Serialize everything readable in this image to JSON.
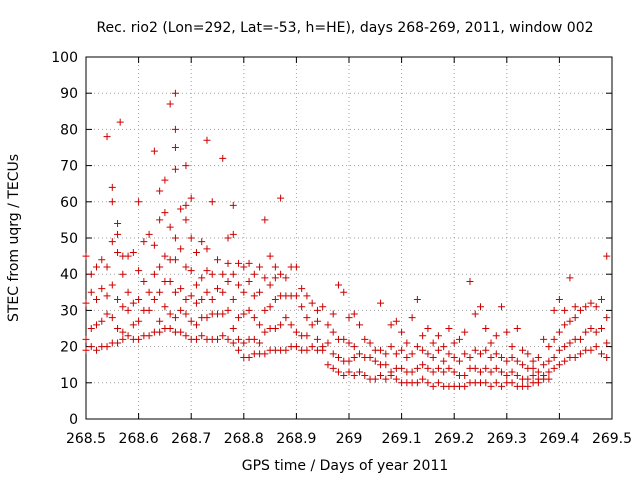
{
  "chart_data": {
    "type": "scatter",
    "title": "Rec. rio2 (Lon=292, Lat=-53, h=HE), days 268-269, 2011, window 002",
    "xlabel": "GPS time / Days of year 2011",
    "ylabel": "STEC from uqrg / TECUs",
    "xlim": [
      268.5,
      269.5
    ],
    "ylim": [
      0,
      100
    ],
    "xticks": [
      "268.5",
      "268.6",
      "268.7",
      "268.8",
      "268.9",
      "269",
      "269.1",
      "269.2",
      "269.3",
      "269.4",
      "269.5"
    ],
    "yticks": [
      "0",
      "10",
      "20",
      "30",
      "40",
      "50",
      "60",
      "70",
      "80",
      "90",
      "100"
    ],
    "grid": true,
    "marker": "+",
    "color": "#cc0000",
    "points": [
      [
        268.5,
        19
      ],
      [
        268.5,
        22
      ],
      [
        268.5,
        32
      ],
      [
        268.5,
        45
      ],
      [
        268.51,
        20
      ],
      [
        268.51,
        25
      ],
      [
        268.51,
        35
      ],
      [
        268.51,
        40
      ],
      [
        268.52,
        19
      ],
      [
        268.52,
        26
      ],
      [
        268.52,
        33
      ],
      [
        268.52,
        42
      ],
      [
        268.53,
        20
      ],
      [
        268.53,
        27
      ],
      [
        268.53,
        36
      ],
      [
        268.53,
        44
      ],
      [
        268.54,
        20
      ],
      [
        268.54,
        29
      ],
      [
        268.54,
        34
      ],
      [
        268.54,
        42
      ],
      [
        268.54,
        78
      ],
      [
        268.55,
        21
      ],
      [
        268.55,
        28
      ],
      [
        268.55,
        37
      ],
      [
        268.55,
        49
      ],
      [
        268.55,
        60
      ],
      [
        268.55,
        64
      ],
      [
        268.56,
        21
      ],
      [
        268.56,
        25
      ],
      [
        268.56,
        33
      ],
      [
        268.56,
        46
      ],
      [
        268.56,
        51
      ],
      [
        268.56,
        54
      ],
      [
        268.565,
        82
      ],
      [
        268.57,
        22
      ],
      [
        268.57,
        24
      ],
      [
        268.57,
        31
      ],
      [
        268.57,
        40
      ],
      [
        268.57,
        45
      ],
      [
        268.58,
        23
      ],
      [
        268.58,
        30
      ],
      [
        268.58,
        35
      ],
      [
        268.58,
        45
      ],
      [
        268.59,
        22
      ],
      [
        268.59,
        26
      ],
      [
        268.59,
        32
      ],
      [
        268.59,
        46
      ],
      [
        268.6,
        22
      ],
      [
        268.6,
        27
      ],
      [
        268.6,
        33
      ],
      [
        268.6,
        41
      ],
      [
        268.6,
        60
      ],
      [
        268.61,
        23
      ],
      [
        268.61,
        30
      ],
      [
        268.61,
        38
      ],
      [
        268.61,
        49
      ],
      [
        268.62,
        23
      ],
      [
        268.62,
        30
      ],
      [
        268.62,
        35
      ],
      [
        268.62,
        51
      ],
      [
        268.63,
        24
      ],
      [
        268.63,
        33
      ],
      [
        268.63,
        40
      ],
      [
        268.63,
        48
      ],
      [
        268.63,
        74
      ],
      [
        268.64,
        24
      ],
      [
        268.64,
        27
      ],
      [
        268.64,
        35
      ],
      [
        268.64,
        42
      ],
      [
        268.64,
        55
      ],
      [
        268.64,
        63
      ],
      [
        268.65,
        25
      ],
      [
        268.65,
        31
      ],
      [
        268.65,
        38
      ],
      [
        268.65,
        45
      ],
      [
        268.65,
        57
      ],
      [
        268.65,
        66
      ],
      [
        268.66,
        25
      ],
      [
        268.66,
        29
      ],
      [
        268.66,
        38
      ],
      [
        268.66,
        44
      ],
      [
        268.66,
        53
      ],
      [
        268.66,
        87
      ],
      [
        268.67,
        24
      ],
      [
        268.67,
        28
      ],
      [
        268.67,
        35
      ],
      [
        268.67,
        44
      ],
      [
        268.67,
        50
      ],
      [
        268.67,
        69
      ],
      [
        268.67,
        75
      ],
      [
        268.67,
        80
      ],
      [
        268.67,
        90
      ],
      [
        268.68,
        24
      ],
      [
        268.68,
        30
      ],
      [
        268.68,
        36
      ],
      [
        268.68,
        47
      ],
      [
        268.68,
        58
      ],
      [
        268.69,
        23
      ],
      [
        268.69,
        29
      ],
      [
        268.69,
        33
      ],
      [
        268.69,
        42
      ],
      [
        268.69,
        55
      ],
      [
        268.69,
        59
      ],
      [
        268.69,
        70
      ],
      [
        268.7,
        22
      ],
      [
        268.7,
        27
      ],
      [
        268.7,
        34
      ],
      [
        268.7,
        41
      ],
      [
        268.7,
        50
      ],
      [
        268.7,
        61
      ],
      [
        268.71,
        22
      ],
      [
        268.71,
        26
      ],
      [
        268.71,
        32
      ],
      [
        268.71,
        37
      ],
      [
        268.71,
        46
      ],
      [
        268.72,
        23
      ],
      [
        268.72,
        28
      ],
      [
        268.72,
        33
      ],
      [
        268.72,
        39
      ],
      [
        268.72,
        49
      ],
      [
        268.73,
        22
      ],
      [
        268.73,
        28
      ],
      [
        268.73,
        35
      ],
      [
        268.73,
        41
      ],
      [
        268.73,
        47
      ],
      [
        268.73,
        77
      ],
      [
        268.74,
        22
      ],
      [
        268.74,
        29
      ],
      [
        268.74,
        33
      ],
      [
        268.74,
        40
      ],
      [
        268.74,
        60
      ],
      [
        268.75,
        22
      ],
      [
        268.75,
        29
      ],
      [
        268.75,
        36
      ],
      [
        268.75,
        44
      ],
      [
        268.76,
        23
      ],
      [
        268.76,
        29
      ],
      [
        268.76,
        35
      ],
      [
        268.76,
        40
      ],
      [
        268.76,
        72
      ],
      [
        268.77,
        22
      ],
      [
        268.77,
        30
      ],
      [
        268.77,
        38
      ],
      [
        268.77,
        43
      ],
      [
        268.77,
        50
      ],
      [
        268.78,
        21
      ],
      [
        268.78,
        25
      ],
      [
        268.78,
        33
      ],
      [
        268.78,
        40
      ],
      [
        268.78,
        51
      ],
      [
        268.78,
        59
      ],
      [
        268.79,
        19
      ],
      [
        268.79,
        22
      ],
      [
        268.79,
        28
      ],
      [
        268.79,
        37
      ],
      [
        268.79,
        43
      ],
      [
        268.8,
        17
      ],
      [
        268.8,
        21
      ],
      [
        268.8,
        29
      ],
      [
        268.8,
        35
      ],
      [
        268.8,
        42
      ],
      [
        268.81,
        17
      ],
      [
        268.81,
        22
      ],
      [
        268.81,
        30
      ],
      [
        268.81,
        38
      ],
      [
        268.81,
        43
      ],
      [
        268.82,
        18
      ],
      [
        268.82,
        22
      ],
      [
        268.82,
        28
      ],
      [
        268.82,
        34
      ],
      [
        268.82,
        40
      ],
      [
        268.83,
        18
      ],
      [
        268.83,
        21
      ],
      [
        268.83,
        26
      ],
      [
        268.83,
        35
      ],
      [
        268.83,
        42
      ],
      [
        268.84,
        18
      ],
      [
        268.84,
        24
      ],
      [
        268.84,
        30
      ],
      [
        268.84,
        39
      ],
      [
        268.84,
        55
      ],
      [
        268.85,
        19
      ],
      [
        268.85,
        25
      ],
      [
        268.85,
        31
      ],
      [
        268.85,
        37
      ],
      [
        268.85,
        45
      ],
      [
        268.86,
        19
      ],
      [
        268.86,
        25
      ],
      [
        268.86,
        33
      ],
      [
        268.86,
        39
      ],
      [
        268.86,
        42
      ],
      [
        268.87,
        19
      ],
      [
        268.87,
        26
      ],
      [
        268.87,
        34
      ],
      [
        268.87,
        40
      ],
      [
        268.87,
        61
      ],
      [
        268.88,
        19
      ],
      [
        268.88,
        28
      ],
      [
        268.88,
        34
      ],
      [
        268.88,
        39
      ],
      [
        268.89,
        20
      ],
      [
        268.89,
        26
      ],
      [
        268.89,
        34
      ],
      [
        268.89,
        42
      ],
      [
        268.9,
        20
      ],
      [
        268.9,
        24
      ],
      [
        268.9,
        34
      ],
      [
        268.9,
        42
      ],
      [
        268.91,
        19
      ],
      [
        268.91,
        23
      ],
      [
        268.91,
        31
      ],
      [
        268.91,
        36
      ],
      [
        268.92,
        19
      ],
      [
        268.92,
        23
      ],
      [
        268.92,
        28
      ],
      [
        268.92,
        34
      ],
      [
        268.93,
        20
      ],
      [
        268.93,
        26
      ],
      [
        268.93,
        32
      ],
      [
        268.94,
        19
      ],
      [
        268.94,
        22
      ],
      [
        268.94,
        27
      ],
      [
        268.94,
        30
      ],
      [
        268.95,
        19
      ],
      [
        268.95,
        20
      ],
      [
        268.95,
        31
      ],
      [
        268.96,
        15
      ],
      [
        268.96,
        21
      ],
      [
        268.96,
        26
      ],
      [
        268.97,
        14
      ],
      [
        268.97,
        18
      ],
      [
        268.97,
        24
      ],
      [
        268.97,
        29
      ],
      [
        268.98,
        13
      ],
      [
        268.98,
        17
      ],
      [
        268.98,
        22
      ],
      [
        268.98,
        37
      ],
      [
        268.99,
        12
      ],
      [
        268.99,
        16
      ],
      [
        268.99,
        22
      ],
      [
        268.99,
        35
      ],
      [
        269.0,
        13
      ],
      [
        269.0,
        16
      ],
      [
        269.0,
        21
      ],
      [
        269.0,
        28
      ],
      [
        269.01,
        12
      ],
      [
        269.01,
        17
      ],
      [
        269.01,
        20
      ],
      [
        269.01,
        29
      ],
      [
        269.02,
        13
      ],
      [
        269.02,
        18
      ],
      [
        269.02,
        26
      ],
      [
        269.03,
        12
      ],
      [
        269.03,
        17
      ],
      [
        269.03,
        22
      ],
      [
        269.04,
        11
      ],
      [
        269.04,
        17
      ],
      [
        269.04,
        21
      ],
      [
        269.05,
        11
      ],
      [
        269.05,
        16
      ],
      [
        269.05,
        19
      ],
      [
        269.06,
        12
      ],
      [
        269.06,
        15
      ],
      [
        269.06,
        19
      ],
      [
        269.06,
        32
      ],
      [
        269.07,
        11
      ],
      [
        269.07,
        15
      ],
      [
        269.07,
        18
      ],
      [
        269.08,
        12
      ],
      [
        269.08,
        13
      ],
      [
        269.08,
        20
      ],
      [
        269.08,
        26
      ],
      [
        269.09,
        11
      ],
      [
        269.09,
        14
      ],
      [
        269.09,
        18
      ],
      [
        269.09,
        27
      ],
      [
        269.1,
        10
      ],
      [
        269.1,
        14
      ],
      [
        269.1,
        19
      ],
      [
        269.1,
        24
      ],
      [
        269.11,
        10
      ],
      [
        269.11,
        13
      ],
      [
        269.11,
        17
      ],
      [
        269.11,
        21
      ],
      [
        269.12,
        10
      ],
      [
        269.12,
        13
      ],
      [
        269.12,
        18
      ],
      [
        269.12,
        28
      ],
      [
        269.13,
        10
      ],
      [
        269.13,
        14
      ],
      [
        269.13,
        20
      ],
      [
        269.13,
        33
      ],
      [
        269.14,
        11
      ],
      [
        269.14,
        15
      ],
      [
        269.14,
        19
      ],
      [
        269.14,
        23
      ],
      [
        269.15,
        10
      ],
      [
        269.15,
        14
      ],
      [
        269.15,
        18
      ],
      [
        269.15,
        25
      ],
      [
        269.16,
        9
      ],
      [
        269.16,
        13
      ],
      [
        269.16,
        17
      ],
      [
        269.16,
        21
      ],
      [
        269.17,
        10
      ],
      [
        269.17,
        14
      ],
      [
        269.17,
        19
      ],
      [
        269.17,
        23
      ],
      [
        269.18,
        9
      ],
      [
        269.18,
        13
      ],
      [
        269.18,
        16
      ],
      [
        269.18,
        20
      ],
      [
        269.19,
        9
      ],
      [
        269.19,
        14
      ],
      [
        269.19,
        18
      ],
      [
        269.19,
        25
      ],
      [
        269.2,
        9
      ],
      [
        269.2,
        13
      ],
      [
        269.2,
        17
      ],
      [
        269.2,
        21
      ],
      [
        269.21,
        9
      ],
      [
        269.21,
        12
      ],
      [
        269.21,
        16
      ],
      [
        269.21,
        22
      ],
      [
        269.22,
        9
      ],
      [
        269.22,
        12
      ],
      [
        269.22,
        18
      ],
      [
        269.22,
        24
      ],
      [
        269.23,
        10
      ],
      [
        269.23,
        14
      ],
      [
        269.23,
        17
      ],
      [
        269.23,
        38
      ],
      [
        269.24,
        10
      ],
      [
        269.24,
        14
      ],
      [
        269.24,
        19
      ],
      [
        269.24,
        29
      ],
      [
        269.25,
        10
      ],
      [
        269.25,
        13
      ],
      [
        269.25,
        18
      ],
      [
        269.25,
        31
      ],
      [
        269.26,
        10
      ],
      [
        269.26,
        14
      ],
      [
        269.26,
        19
      ],
      [
        269.26,
        25
      ],
      [
        269.27,
        9
      ],
      [
        269.27,
        13
      ],
      [
        269.27,
        17
      ],
      [
        269.27,
        21
      ],
      [
        269.28,
        10
      ],
      [
        269.28,
        14
      ],
      [
        269.28,
        18
      ],
      [
        269.28,
        23
      ],
      [
        269.29,
        9
      ],
      [
        269.29,
        13
      ],
      [
        269.29,
        17
      ],
      [
        269.29,
        31
      ],
      [
        269.3,
        10
      ],
      [
        269.3,
        12
      ],
      [
        269.3,
        16
      ],
      [
        269.3,
        24
      ],
      [
        269.31,
        10
      ],
      [
        269.31,
        13
      ],
      [
        269.31,
        17
      ],
      [
        269.31,
        20
      ],
      [
        269.32,
        9
      ],
      [
        269.32,
        12
      ],
      [
        269.32,
        16
      ],
      [
        269.32,
        25
      ],
      [
        269.33,
        9
      ],
      [
        269.33,
        11
      ],
      [
        269.33,
        15
      ],
      [
        269.33,
        19
      ],
      [
        269.34,
        9
      ],
      [
        269.34,
        11
      ],
      [
        269.34,
        14
      ],
      [
        269.34,
        18
      ],
      [
        269.35,
        10
      ],
      [
        269.35,
        12
      ],
      [
        269.35,
        14
      ],
      [
        269.35,
        16
      ],
      [
        269.36,
        10
      ],
      [
        269.36,
        11
      ],
      [
        269.36,
        13
      ],
      [
        269.36,
        17
      ],
      [
        269.37,
        11
      ],
      [
        269.37,
        12
      ],
      [
        269.37,
        15
      ],
      [
        269.37,
        22
      ],
      [
        269.38,
        11
      ],
      [
        269.38,
        13
      ],
      [
        269.38,
        16
      ],
      [
        269.38,
        20
      ],
      [
        269.39,
        14
      ],
      [
        269.39,
        17
      ],
      [
        269.39,
        22
      ],
      [
        269.39,
        30
      ],
      [
        269.4,
        15
      ],
      [
        269.4,
        19
      ],
      [
        269.4,
        24
      ],
      [
        269.4,
        33
      ],
      [
        269.41,
        16
      ],
      [
        269.41,
        20
      ],
      [
        269.41,
        26
      ],
      [
        269.41,
        30
      ],
      [
        269.42,
        17
      ],
      [
        269.42,
        21
      ],
      [
        269.42,
        27
      ],
      [
        269.42,
        39
      ],
      [
        269.43,
        17
      ],
      [
        269.43,
        22
      ],
      [
        269.43,
        28
      ],
      [
        269.43,
        31
      ],
      [
        269.44,
        18
      ],
      [
        269.44,
        22
      ],
      [
        269.44,
        30
      ],
      [
        269.45,
        19
      ],
      [
        269.45,
        24
      ],
      [
        269.45,
        31
      ],
      [
        269.46,
        19
      ],
      [
        269.46,
        25
      ],
      [
        269.46,
        32
      ],
      [
        269.47,
        20
      ],
      [
        269.47,
        24
      ],
      [
        269.47,
        31
      ],
      [
        269.48,
        18
      ],
      [
        269.48,
        25
      ],
      [
        269.48,
        33
      ],
      [
        269.49,
        17
      ],
      [
        269.49,
        21
      ],
      [
        269.49,
        28
      ],
      [
        269.49,
        45
      ]
    ]
  }
}
